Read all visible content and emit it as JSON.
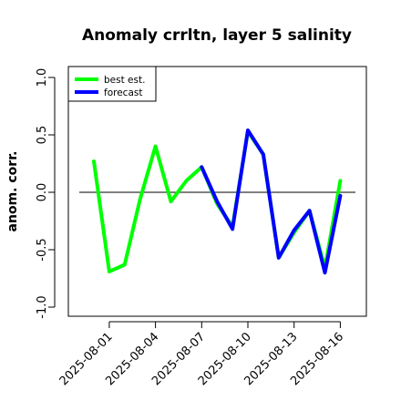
{
  "chart_data": {
    "type": "line",
    "title": "Anomaly crrltn, layer 5 salinity",
    "ylabel": "anom. corr.",
    "xlabel": "",
    "ylim": [
      -1.0,
      1.0
    ],
    "yticks": [
      "-1.0",
      "-0.5",
      "0.0",
      "0.5",
      "1.0"
    ],
    "x": [
      "2025-07-31",
      "2025-08-01",
      "2025-08-02",
      "2025-08-03",
      "2025-08-04",
      "2025-08-05",
      "2025-08-06",
      "2025-08-07",
      "2025-08-08",
      "2025-08-09",
      "2025-08-10",
      "2025-08-11",
      "2025-08-12",
      "2025-08-13",
      "2025-08-14",
      "2025-08-15",
      "2025-08-16"
    ],
    "xticks": [
      "2025-08-01",
      "2025-08-04",
      "2025-08-07",
      "2025-08-10",
      "2025-08-13",
      "2025-08-16"
    ],
    "highlighted_xtick": "2025-08-07",
    "highlight_color": "#228B22",
    "reference_line": 0.0,
    "legend_position": "top-left",
    "series": [
      {
        "name": "best est.",
        "color": "#00ff00",
        "x": [
          "2025-07-31",
          "2025-08-01",
          "2025-08-02",
          "2025-08-03",
          "2025-08-04",
          "2025-08-05",
          "2025-08-06",
          "2025-08-07",
          "2025-08-08",
          "2025-08-09",
          "2025-08-10",
          "2025-08-11",
          "2025-08-12",
          "2025-08-13",
          "2025-08-14",
          "2025-08-15",
          "2025-08-16"
        ],
        "values": [
          0.27,
          -0.69,
          -0.63,
          -0.06,
          0.4,
          -0.08,
          0.1,
          0.22,
          -0.1,
          -0.3,
          0.53,
          0.33,
          -0.57,
          -0.35,
          -0.16,
          -0.66,
          0.1
        ]
      },
      {
        "name": "forecast",
        "color": "#0000ff",
        "x": [
          "2025-08-07",
          "2025-08-08",
          "2025-08-09",
          "2025-08-10",
          "2025-08-11",
          "2025-08-12",
          "2025-08-13",
          "2025-08-14",
          "2025-08-15",
          "2025-08-16"
        ],
        "values": [
          0.22,
          -0.08,
          -0.32,
          0.54,
          0.33,
          -0.57,
          -0.33,
          -0.16,
          -0.7,
          -0.03
        ]
      }
    ]
  }
}
